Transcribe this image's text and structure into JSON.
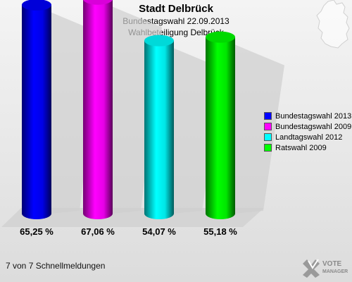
{
  "header": {
    "title": "Stadt Delbrück",
    "subtitle": "Bundestagswahl 22.09.2013",
    "subtitle2": "Wahlbeteiligung Delbrück"
  },
  "chart_data": {
    "type": "bar",
    "categories": [
      "Bundestagswahl 2013",
      "Bundestagswahl 2009",
      "Landtagswahl 2012",
      "Ratswahl 2009"
    ],
    "values": [
      65.25,
      67.06,
      54.07,
      55.18
    ],
    "value_labels": [
      "65,25 %",
      "67,06 %",
      "54,07 %",
      "55,18 %"
    ],
    "colors": [
      "#0000ff",
      "#ff00ff",
      "#00ffff",
      "#00ff00"
    ],
    "ylim": [
      0,
      80
    ],
    "legend_position": "right",
    "grid": false
  },
  "footer": {
    "text": "7 von 7 Schnellmeldungen"
  },
  "brand": {
    "line1": "VOTE",
    "line2": "MANAGER"
  },
  "icons": {
    "map": "germany-map-icon",
    "logo": "vote-manager-logo-icon"
  }
}
